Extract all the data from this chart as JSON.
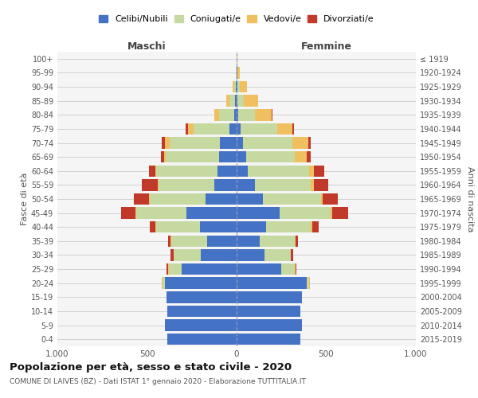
{
  "age_groups": [
    "0-4",
    "5-9",
    "10-14",
    "15-19",
    "20-24",
    "25-29",
    "30-34",
    "35-39",
    "40-44",
    "45-49",
    "50-54",
    "55-59",
    "60-64",
    "65-69",
    "70-74",
    "75-79",
    "80-84",
    "85-89",
    "90-94",
    "95-99",
    "100+"
  ],
  "birth_years": [
    "2015-2019",
    "2010-2014",
    "2005-2009",
    "2000-2004",
    "1995-1999",
    "1990-1994",
    "1985-1989",
    "1980-1984",
    "1975-1979",
    "1970-1974",
    "1965-1969",
    "1960-1964",
    "1955-1959",
    "1950-1954",
    "1945-1949",
    "1940-1944",
    "1935-1939",
    "1930-1934",
    "1925-1929",
    "1920-1924",
    "≤ 1919"
  ],
  "male_celibi": [
    385,
    400,
    385,
    390,
    400,
    305,
    200,
    165,
    205,
    280,
    175,
    125,
    105,
    100,
    95,
    40,
    15,
    8,
    5,
    2,
    2
  ],
  "male_coniugati": [
    0,
    0,
    0,
    0,
    15,
    75,
    150,
    200,
    245,
    280,
    310,
    310,
    345,
    295,
    280,
    200,
    85,
    30,
    8,
    2,
    0
  ],
  "male_vedovi": [
    0,
    0,
    0,
    0,
    5,
    2,
    2,
    2,
    5,
    5,
    5,
    5,
    5,
    10,
    25,
    30,
    25,
    22,
    8,
    2,
    0
  ],
  "male_divorziati": [
    0,
    0,
    0,
    0,
    0,
    8,
    15,
    15,
    28,
    80,
    85,
    90,
    35,
    18,
    20,
    15,
    0,
    0,
    0,
    0,
    0
  ],
  "female_celibi": [
    355,
    365,
    355,
    365,
    390,
    250,
    155,
    130,
    165,
    240,
    145,
    100,
    60,
    55,
    35,
    20,
    10,
    5,
    5,
    3,
    2
  ],
  "female_coniugati": [
    0,
    0,
    0,
    0,
    15,
    75,
    145,
    195,
    250,
    285,
    325,
    315,
    345,
    270,
    275,
    205,
    90,
    35,
    12,
    2,
    0
  ],
  "female_vedovi": [
    0,
    0,
    0,
    0,
    2,
    2,
    2,
    2,
    5,
    8,
    10,
    18,
    28,
    68,
    90,
    85,
    95,
    80,
    40,
    12,
    2
  ],
  "female_divorziati": [
    0,
    0,
    0,
    0,
    2,
    8,
    15,
    15,
    38,
    90,
    85,
    80,
    55,
    20,
    15,
    10,
    5,
    0,
    0,
    0,
    0
  ],
  "colors": {
    "celibi": "#4472c4",
    "coniugati": "#c5d9a0",
    "vedovi": "#f0c060",
    "divorziati": "#c0392b"
  },
  "xlim": 1000,
  "title": "Popolazione per età, sesso e stato civile - 2020",
  "subtitle": "COMUNE DI LAIVES (BZ) - Dati ISTAT 1° gennaio 2020 - Elaborazione TUTTITALIA.IT",
  "xlabel_left": "Maschi",
  "xlabel_right": "Femmine",
  "ylabel_left": "Fasce di età",
  "ylabel_right": "Anni di nascita",
  "bg_color": "#f5f5f5"
}
